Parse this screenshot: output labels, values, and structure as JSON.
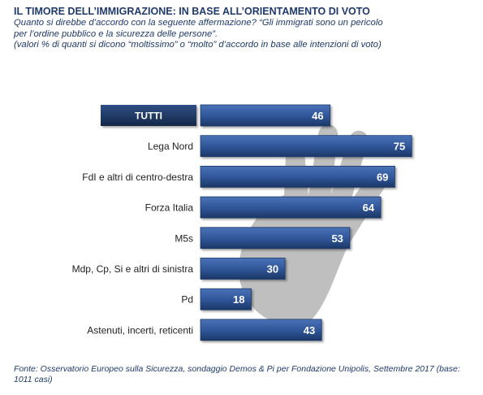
{
  "title": "IL TIMORE DELL’IMMIGRAZIONE: IN BASE ALL’ORIENTAMENTO DI VOTO",
  "subtitle_line1": "Quanto si direbbe d’accordo con la seguente affermazione? “Gli immigrati sono un pericolo",
  "subtitle_line2": "per l’ordine pubblico e la sicurezza delle persone”.",
  "note": "(valori % di quanti si dicono “moltissimo” o “molto” d’accordo in base alle intenzioni di voto)",
  "source": "Fonte: Osservatorio Europeo sulla Sicurezza, sondaggio Demos & Pi per Fondazione Unipolis, Settembre 2017 (base: 1011 casi)",
  "colors": {
    "bar": "#2f5597",
    "bar_dark": "#1c3766",
    "highlight_label_bg": "#1f3864",
    "text": "#1f1f1f"
  },
  "chart_data": {
    "type": "bar",
    "orientation": "horizontal",
    "categories": [
      "TUTTI",
      "Lega Nord",
      "FdI e altri di centro-destra",
      "Forza Italia",
      "M5s",
      "Mdp, Cp, Si e altri di sinistra",
      "Pd",
      "Astenuti, incerti, reticenti"
    ],
    "values": [
      46,
      75,
      69,
      64,
      53,
      30,
      18,
      43
    ],
    "highlighted_category": "TUTTI",
    "xlim": [
      0,
      80
    ],
    "grid": false,
    "legend": "none"
  }
}
